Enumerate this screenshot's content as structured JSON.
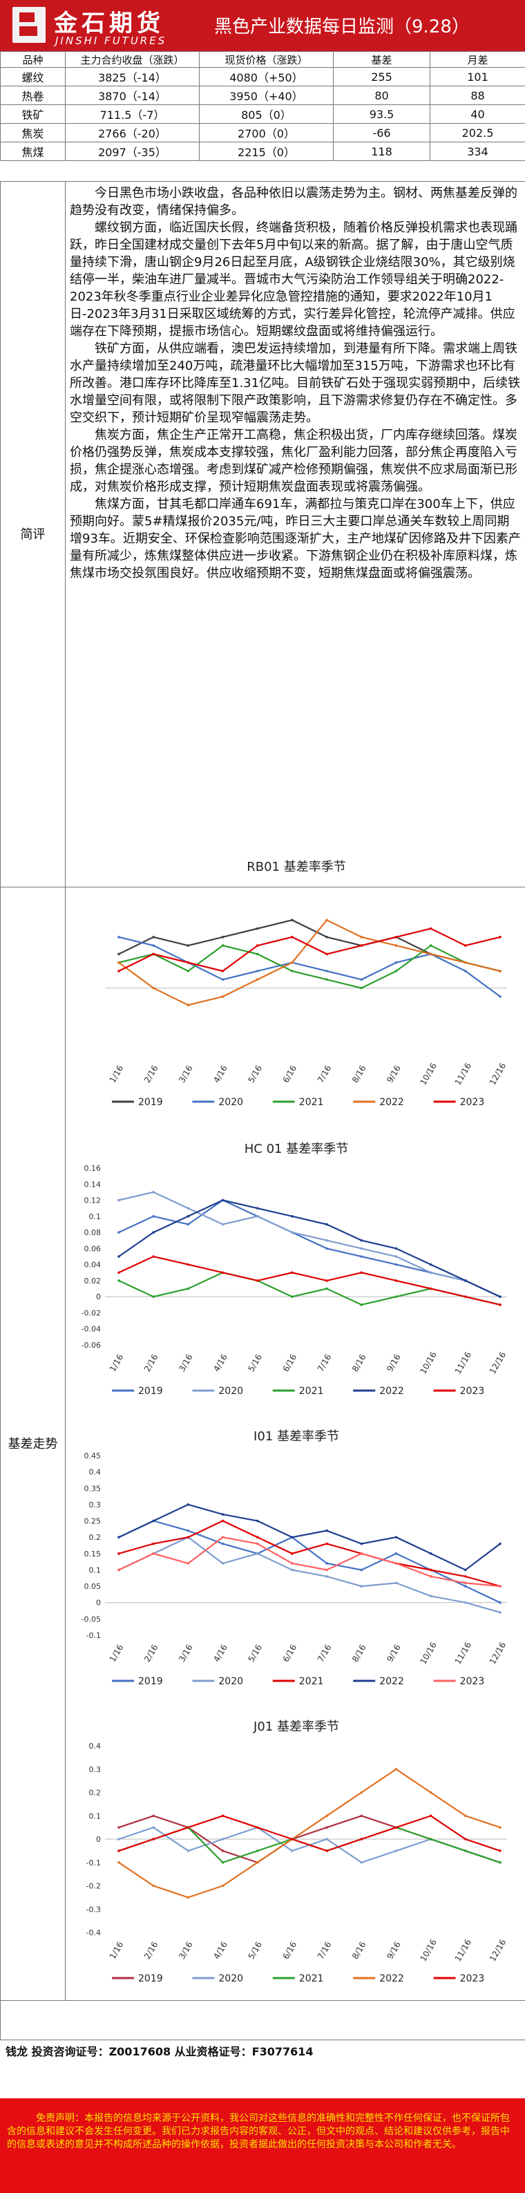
{
  "header": {
    "logo_cn": "金石期货",
    "logo_en": "JINSHI FUTURES",
    "title": "黑色产业数据每日监测（9.28）"
  },
  "price_table": {
    "columns": [
      "品种",
      "主力合约收盘（涨跌）",
      "现货价格（涨跌）",
      "基差",
      "月差"
    ],
    "rows": [
      [
        "螺纹",
        "3825（-14）",
        "4080（+50）",
        "255",
        "101"
      ],
      [
        "热卷",
        "3870（-14）",
        "3950（+40）",
        "80",
        "88"
      ],
      [
        "铁矿",
        "711.5（-7）",
        "805（0）",
        "93.5",
        "40"
      ],
      [
        "焦炭",
        "2766（-20）",
        "2700（0）",
        "-66",
        "202.5"
      ],
      [
        "焦煤",
        "2097（-35）",
        "2215（0）",
        "118",
        "334"
      ]
    ]
  },
  "review": {
    "label": "简评",
    "paragraphs": [
      "今日黑色市场小跌收盘，各品种依旧以震荡走势为主。钢材、两焦基差反弹的趋势没有改变，情绪保持偏多。",
      "螺纹钢方面，临近国庆长假，终端备货积极，随着价格反弹投机需求也表现踊跃，昨日全国建材成交量创下去年5月中旬以来的新高。据了解，由于唐山空气质量持续下滑，唐山钢企9月26日起至月底，A级钢铁企业烧结限30%，其它级别烧结停一半，柴油车进厂量减半。晋城市大气污染防治工作领导组关于明确2022-2023年秋冬季重点行业企业差异化应急管控措施的通知，要求2022年10月1日-2023年3月31日采取区域统筹的方式，实行差异化管控，轮流停产减排。供应端存在下降预期，提振市场信心。短期螺纹盘面或将维持偏强运行。",
      "铁矿方面，从供应端看，澳巴发运持续增加，到港量有所下降。需求端上周铁水产量持续增加至240万吨，疏港量环比大幅增加至315万吨，下游需求也环比有所改善。港口库存环比降库至1.31亿吨。目前铁矿石处于强现实弱预期中，后续铁水增量空间有限，或将限制下限产政策影响，且下游需求修复仍存在不确定性。多空交织下，预计短期矿价呈现窄幅震荡走势。",
      "焦炭方面，焦企生产正常开工高稳，焦企积极出货，厂内库存继续回落。煤炭价格仍强势反弹，焦炭成本支撑较强，焦化厂盈利能力回落，部分焦企再度陷入亏损，焦企提涨心态增强。考虑到煤矿减产检修预期偏强，焦炭供不应求局面渐已形成，对焦炭价格形成支撑，预计短期焦炭盘面表现或将震荡偏强。",
      "焦煤方面，甘其毛都口岸通车691车，满都拉与策克口岸在300车上下，供应预期向好。蒙5#精煤报价2035元/吨，昨日三大主要口岸总通关车数较上周同期增93车。近期安全、环保检查影响范围逐渐扩大，主产地煤矿因修路及井下因素产量有所减少，炼焦煤整体供应进一步收紧。下游焦钢企业仍在积极补库原料煤，炼焦煤市场交投氛围良好。供应收缩预期不变，短期焦煤盘面或将偏强震荡。"
    ]
  },
  "basis": {
    "label": "基差走势"
  },
  "chart_data": [
    {
      "type": "line",
      "title": "RB01 基差率季节",
      "xlabel": "",
      "ylabel": "",
      "x": [
        "1/16",
        "2/16",
        "3/16",
        "4/16",
        "5/16",
        "6/16",
        "7/16",
        "8/16",
        "9/16",
        "10/16",
        "11/16",
        "12/16"
      ],
      "ylim": [
        -0.08,
        0.12
      ],
      "yticks": [],
      "series": [
        {
          "name": "2019",
          "color": "#404040",
          "values": [
            0.04,
            0.06,
            0.05,
            0.06,
            0.07,
            0.08,
            0.06,
            0.05,
            0.06,
            0.04,
            0.03,
            0.02
          ]
        },
        {
          "name": "2020",
          "color": "#4472c4",
          "values": [
            0.06,
            0.05,
            0.03,
            0.01,
            0.02,
            0.03,
            0.02,
            0.01,
            0.03,
            0.04,
            0.02,
            -0.01
          ]
        },
        {
          "name": "2021",
          "color": "#2ca02c",
          "values": [
            0.03,
            0.04,
            0.02,
            0.05,
            0.04,
            0.02,
            0.01,
            0.0,
            0.02,
            0.05,
            0.03,
            0.02
          ]
        },
        {
          "name": "2022",
          "color": "#e07020",
          "values": [
            0.03,
            0.0,
            -0.02,
            -0.01,
            0.01,
            0.03,
            0.08,
            0.06,
            0.05,
            0.04,
            0.03,
            0.02
          ]
        },
        {
          "name": "2023",
          "color": "#e00000",
          "values": [
            0.02,
            0.04,
            0.03,
            0.02,
            0.05,
            0.06,
            0.04,
            0.05,
            0.06,
            0.07,
            0.05,
            0.06
          ]
        }
      ]
    },
    {
      "type": "line",
      "title": "HC 01 基差率季节",
      "xlabel": "",
      "ylabel": "",
      "x": [
        "1/16",
        "2/16",
        "3/16",
        "4/16",
        "5/16",
        "6/16",
        "7/16",
        "8/16",
        "9/16",
        "10/16",
        "11/16",
        "12/16"
      ],
      "ylim": [
        -0.06,
        0.16
      ],
      "yticks": [
        "0.16",
        "0.14",
        "0.12",
        "0.1",
        "0.08",
        "0.06",
        "0.04",
        "0.02",
        "0",
        "-0.02",
        "-0.04",
        "-0.06"
      ],
      "series": [
        {
          "name": "2019",
          "color": "#4472c4",
          "values": [
            0.08,
            0.1,
            0.09,
            0.12,
            0.1,
            0.08,
            0.06,
            0.05,
            0.04,
            0.03,
            0.02,
            0.0
          ]
        },
        {
          "name": "2020",
          "color": "#7f9ccf",
          "values": [
            0.12,
            0.13,
            0.11,
            0.09,
            0.1,
            0.08,
            0.07,
            0.06,
            0.05,
            0.03,
            0.02,
            0.0
          ]
        },
        {
          "name": "2021",
          "color": "#2ca02c",
          "values": [
            0.02,
            0.0,
            0.01,
            0.03,
            0.02,
            0.0,
            0.01,
            -0.01,
            0.0,
            0.01,
            0.0,
            -0.01
          ]
        },
        {
          "name": "2022",
          "color": "#1f3f8f",
          "values": [
            0.05,
            0.08,
            0.1,
            0.12,
            0.11,
            0.1,
            0.09,
            0.07,
            0.06,
            0.04,
            0.02,
            0.0
          ]
        },
        {
          "name": "2023",
          "color": "#e00000",
          "values": [
            0.03,
            0.05,
            0.04,
            0.03,
            0.02,
            0.03,
            0.02,
            0.03,
            0.02,
            0.01,
            0.0,
            -0.01
          ]
        }
      ]
    },
    {
      "type": "line",
      "title": "I01 基差率季节",
      "xlabel": "",
      "ylabel": "",
      "x": [
        "1/16",
        "2/16",
        "3/16",
        "4/16",
        "5/16",
        "6/16",
        "7/16",
        "8/16",
        "9/16",
        "10/16",
        "11/16",
        "12/16"
      ],
      "ylim": [
        -0.1,
        0.45
      ],
      "yticks": [
        "0.45",
        "0.4",
        "0.35",
        "0.3",
        "0.25",
        "0.2",
        "0.15",
        "0.1",
        "0.05",
        "0",
        "-0.05",
        "-0.1"
      ],
      "series": [
        {
          "name": "2019",
          "color": "#4472c4",
          "values": [
            0.2,
            0.25,
            0.22,
            0.18,
            0.15,
            0.2,
            0.12,
            0.1,
            0.15,
            0.1,
            0.05,
            0.0
          ]
        },
        {
          "name": "2020",
          "color": "#7f9ccf",
          "values": [
            0.1,
            0.15,
            0.2,
            0.12,
            0.15,
            0.1,
            0.08,
            0.05,
            0.06,
            0.02,
            0.0,
            -0.03
          ]
        },
        {
          "name": "2021",
          "color": "#e00000",
          "values": [
            0.15,
            0.18,
            0.2,
            0.25,
            0.2,
            0.15,
            0.18,
            0.15,
            0.12,
            0.1,
            0.08,
            0.05
          ]
        },
        {
          "name": "2022",
          "color": "#1f3f8f",
          "values": [
            0.2,
            0.25,
            0.3,
            0.27,
            0.25,
            0.2,
            0.22,
            0.18,
            0.2,
            0.15,
            0.1,
            0.18
          ]
        },
        {
          "name": "2023",
          "color": "#ff6060",
          "values": [
            0.1,
            0.15,
            0.12,
            0.2,
            0.18,
            0.12,
            0.1,
            0.15,
            0.12,
            0.08,
            0.06,
            0.05
          ]
        }
      ]
    },
    {
      "type": "line",
      "title": "J01 基差率季节",
      "xlabel": "",
      "ylabel": "",
      "x": [
        "1/16",
        "2/16",
        "3/16",
        "4/16",
        "5/16",
        "6/16",
        "7/16",
        "8/16",
        "9/16",
        "10/16",
        "11/16",
        "12/16"
      ],
      "ylim": [
        -0.4,
        0.4
      ],
      "yticks": [
        "0.4",
        "0.3",
        "0.2",
        "0.1",
        "0",
        "-0.1",
        "-0.2",
        "-0.3",
        "-0.4"
      ],
      "series": [
        {
          "name": "2019",
          "color": "#b03040",
          "values": [
            0.05,
            0.1,
            0.05,
            -0.05,
            -0.1,
            0.0,
            0.05,
            0.1,
            0.05,
            0.0,
            -0.05,
            -0.1
          ]
        },
        {
          "name": "2020",
          "color": "#7f9ccf",
          "values": [
            0.0,
            0.05,
            -0.05,
            0.0,
            0.05,
            -0.05,
            0.0,
            -0.1,
            -0.05,
            0.0,
            -0.05,
            -0.1
          ]
        },
        {
          "name": "2021",
          "color": "#2ca02c",
          "values": [
            -0.05,
            0.0,
            0.05,
            -0.1,
            -0.05,
            0.0,
            -0.05,
            0.0,
            0.05,
            0.0,
            -0.05,
            -0.1
          ]
        },
        {
          "name": "2022",
          "color": "#e07020",
          "values": [
            -0.1,
            -0.2,
            -0.25,
            -0.2,
            -0.1,
            0.0,
            0.1,
            0.2,
            0.3,
            0.2,
            0.1,
            0.05
          ]
        },
        {
          "name": "2023",
          "color": "#e00000",
          "values": [
            -0.05,
            0.0,
            0.05,
            0.1,
            0.05,
            0.0,
            -0.05,
            0.0,
            0.05,
            0.1,
            0.0,
            -0.05
          ]
        }
      ]
    }
  ],
  "footer": {
    "analyst": "钱龙 投资咨询证号：Z0017608 从业资格证号：F3077614",
    "disclaimer": "免责声明：本报告的信息均来源于公开资料，我公司对这些信息的准确性和完整性不作任何保证，也不保证所包含的信息和建议不会发生任何变更。我们已力求报告内容的客观、公正，但文中的观点、结论和建议仅供参考，报告中的信息或表述的意见并不构成所述品种的操作依据，投资者据此做出的任何投资决策与本公司和作者无关。"
  }
}
